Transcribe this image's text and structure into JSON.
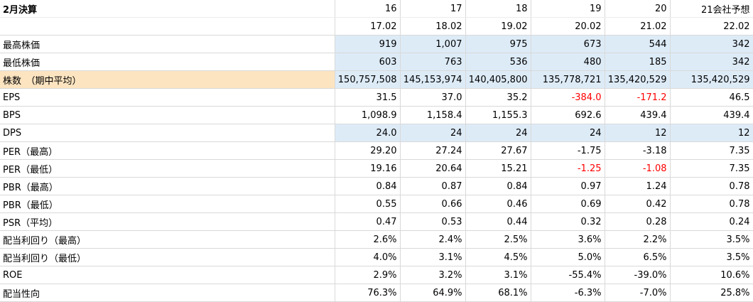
{
  "header": {
    "title": "2月決算",
    "years": [
      "16",
      "17",
      "18",
      "19",
      "20",
      "21会社予想"
    ],
    "periods": [
      "17.02",
      "18.02",
      "19.02",
      "20.02",
      "21.02",
      "22.02"
    ]
  },
  "rows": [
    {
      "label": "最高株価",
      "values": [
        "919",
        "1,007",
        "975",
        "673",
        "544",
        "342"
      ],
      "shade": "blue"
    },
    {
      "label": "最低株価",
      "values": [
        "603",
        "763",
        "536",
        "480",
        "185",
        "342"
      ],
      "shade": "blue"
    },
    {
      "label": "株数　（期中平均）",
      "values": [
        "150,757,508",
        "145,153,974",
        "140,405,800",
        "135,778,721",
        "135,420,529",
        "135,420,529"
      ],
      "shade": "orange"
    },
    {
      "label": "EPS",
      "values": [
        "31.5",
        "37.0",
        "35.2",
        "-384.0",
        "-171.2",
        "46.5"
      ],
      "neg": [
        3,
        4
      ]
    },
    {
      "label": "BPS",
      "values": [
        "1,098.9",
        "1,158.4",
        "1,155.3",
        "692.6",
        "439.4",
        "439.4"
      ]
    },
    {
      "label": "DPS",
      "values": [
        "24.0",
        "24",
        "24",
        "24",
        "12",
        "12"
      ],
      "shade": "blue"
    },
    {
      "label": "PER（最高）",
      "values": [
        "29.20",
        "27.24",
        "27.67",
        "-1.75",
        "-3.18",
        "7.35"
      ]
    },
    {
      "label": "PER（最低）",
      "values": [
        "19.16",
        "20.64",
        "15.21",
        "-1.25",
        "-1.08",
        "7.35"
      ],
      "neg": [
        3,
        4
      ]
    },
    {
      "label": "PBR（最高）",
      "values": [
        "0.84",
        "0.87",
        "0.84",
        "0.97",
        "1.24",
        "0.78"
      ]
    },
    {
      "label": "PBR（最低）",
      "values": [
        "0.55",
        "0.66",
        "0.46",
        "0.69",
        "0.42",
        "0.78"
      ]
    },
    {
      "label": "PSR（平均）",
      "values": [
        "0.47",
        "0.53",
        "0.44",
        "0.32",
        "0.28",
        "0.24"
      ]
    },
    {
      "label": "配当利回り（最高）",
      "values": [
        "2.6%",
        "2.4%",
        "2.5%",
        "3.6%",
        "2.2%",
        "3.5%"
      ]
    },
    {
      "label": "配当利回り（最低）",
      "values": [
        "4.0%",
        "3.1%",
        "4.5%",
        "5.0%",
        "6.5%",
        "3.5%"
      ]
    },
    {
      "label": "ROE",
      "values": [
        "2.9%",
        "3.2%",
        "3.1%",
        "-55.4%",
        "-39.0%",
        "10.6%"
      ]
    },
    {
      "label": "配当性向",
      "values": [
        "76.3%",
        "64.9%",
        "68.1%",
        "-6.3%",
        "-7.0%",
        "25.8%"
      ]
    }
  ],
  "colors": {
    "blue_fill": "#ddebf7",
    "orange_fill": "#fce4c0",
    "negative": "#ff0000",
    "grid": "#d9d9d9"
  }
}
